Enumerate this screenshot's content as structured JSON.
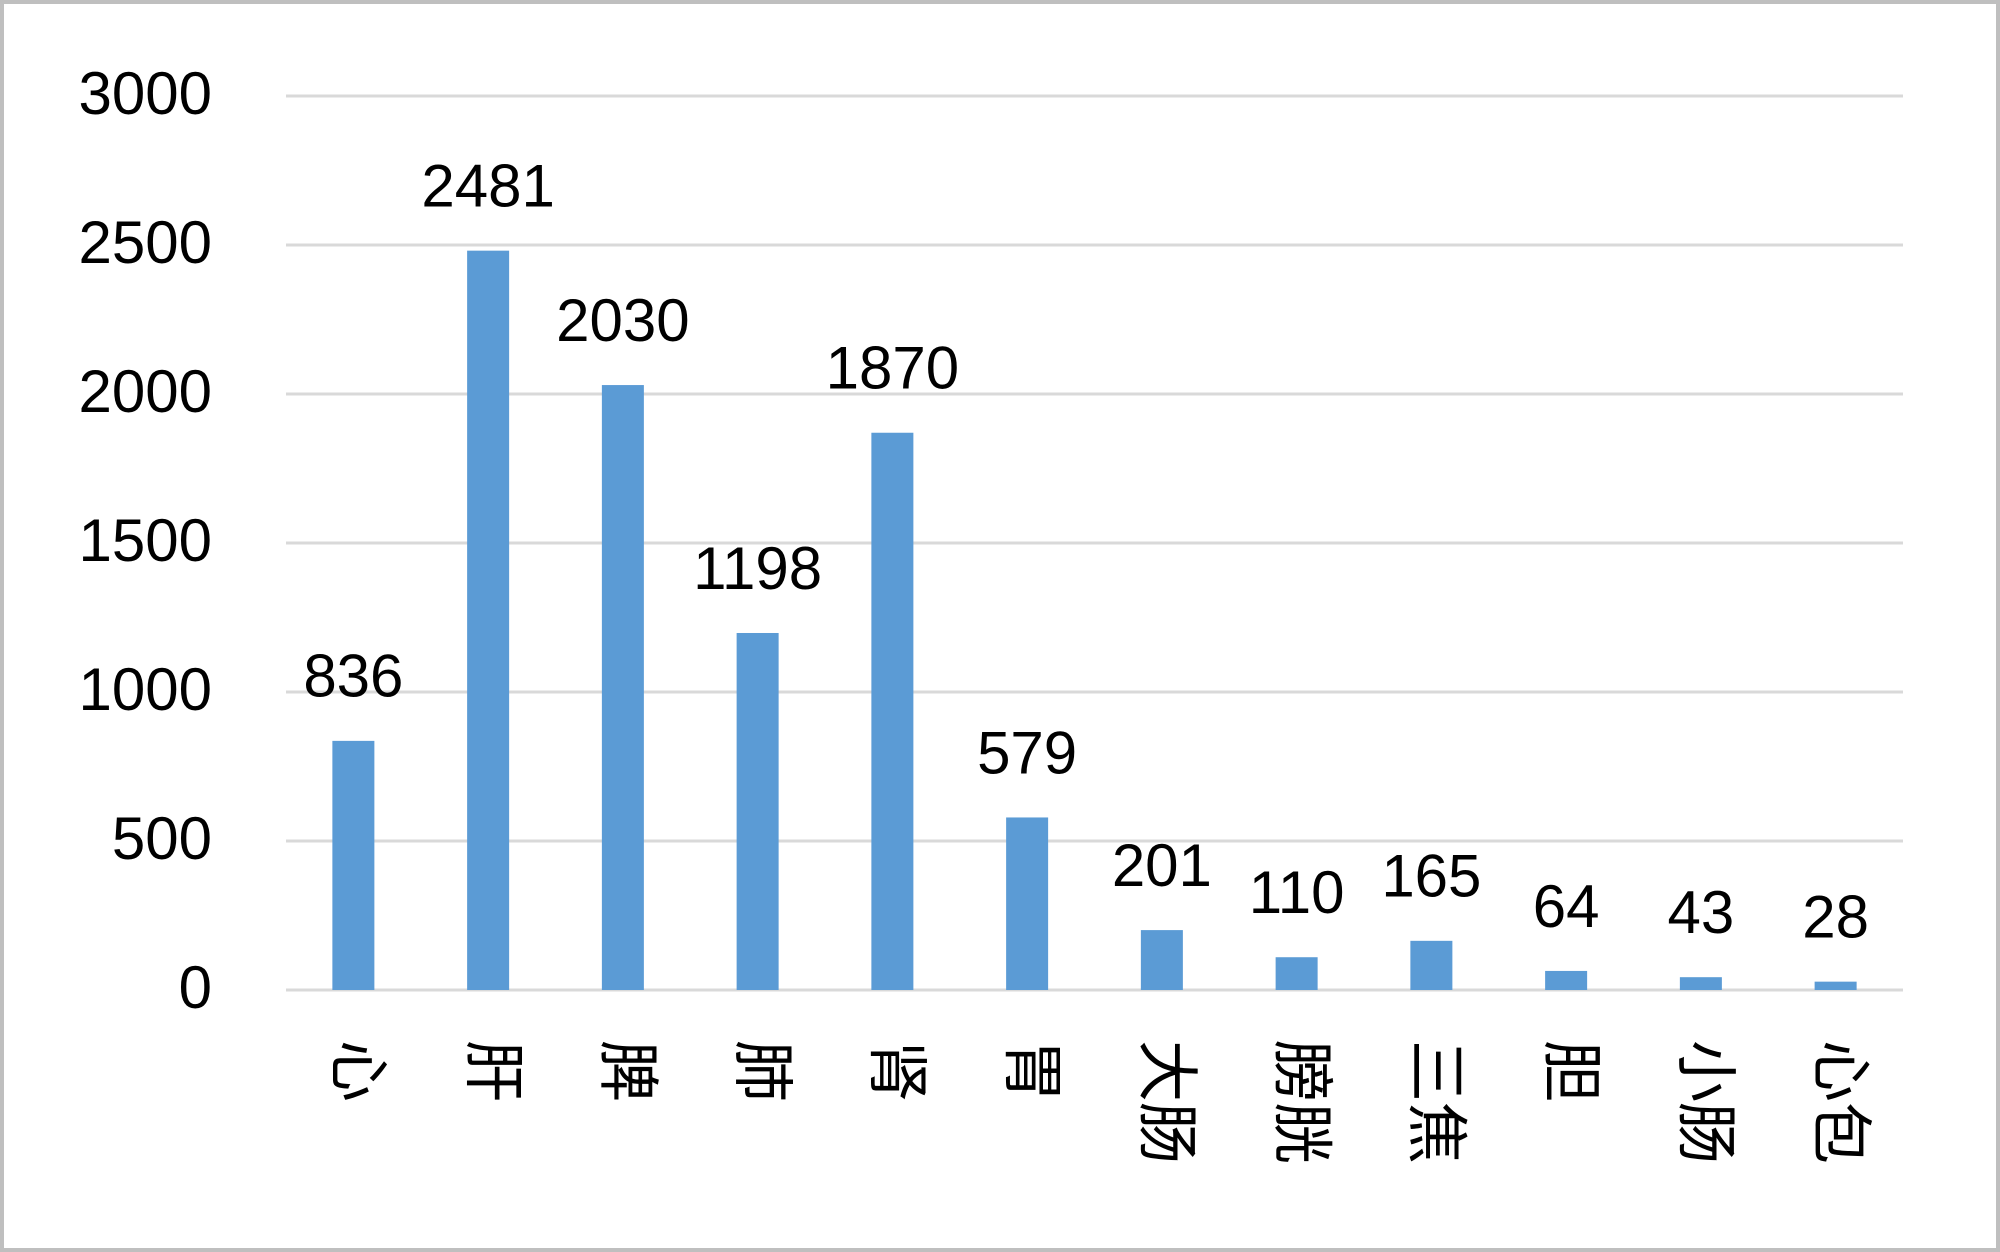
{
  "chart_data": {
    "type": "bar",
    "categories": [
      "心",
      "肝",
      "脾",
      "肺",
      "肾",
      "胃",
      "大肠",
      "膀胱",
      "三焦",
      "胆",
      "小肠",
      "心包"
    ],
    "values": [
      836,
      2481,
      2030,
      1198,
      1870,
      579,
      201,
      110,
      165,
      64,
      43,
      28
    ],
    "color": "#5b9bd5",
    "ylim": [
      0,
      3000
    ],
    "yticks": [
      0,
      500,
      1000,
      1500,
      2000,
      2500,
      3000
    ],
    "grid": true
  }
}
